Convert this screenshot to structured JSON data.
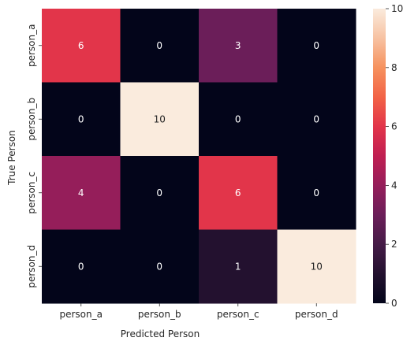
{
  "chart_data": {
    "type": "heatmap",
    "title": "",
    "xlabel": "Predicted Person",
    "ylabel": "True Person",
    "x_categories": [
      "person_a",
      "person_b",
      "person_c",
      "person_d"
    ],
    "y_categories": [
      "person_a",
      "person_b",
      "person_c",
      "person_d"
    ],
    "values": [
      [
        6,
        0,
        3,
        0
      ],
      [
        0,
        10,
        0,
        0
      ],
      [
        4,
        0,
        6,
        0
      ],
      [
        0,
        0,
        1,
        10
      ]
    ],
    "colorbar": {
      "min": 0,
      "max": 10,
      "ticks": [
        "0",
        "2",
        "4",
        "6",
        "8",
        "10"
      ],
      "colormap": "rocket"
    },
    "annot_colors": {
      "light": "#ffffff",
      "dark": "#262626"
    }
  }
}
